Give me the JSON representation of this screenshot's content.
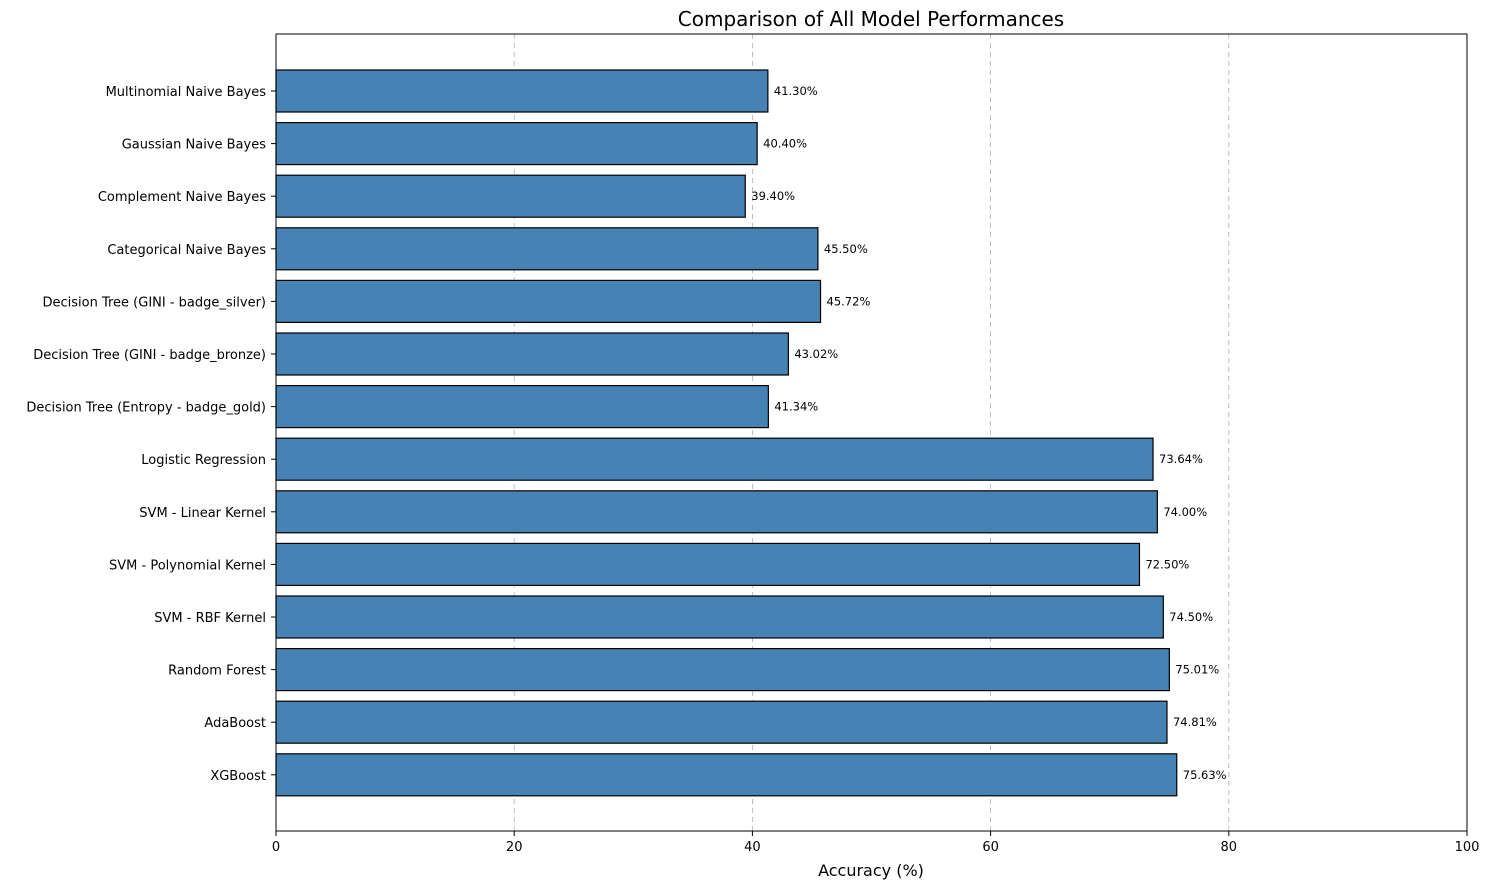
{
  "chart_data": {
    "type": "bar",
    "orientation": "horizontal",
    "title": "Comparison of All Model Performances",
    "xlabel": "Accuracy (%)",
    "ylabel": "",
    "xlim": [
      0,
      100
    ],
    "xticks": [
      0,
      20,
      40,
      60,
      80,
      100
    ],
    "grid": "x-axis dashed",
    "bar_color": "#4682b4",
    "edge_color": "#000000",
    "categories": [
      "Multinomial Naive Bayes",
      "Gaussian Naive Bayes",
      "Complement Naive Bayes",
      "Categorical Naive Bayes",
      "Decision Tree (GINI - badge_silver)",
      "Decision Tree (GINI - badge_bronze)",
      "Decision Tree (Entropy - badge_gold)",
      "Logistic Regression",
      "SVM - Linear Kernel",
      "SVM - Polynomial Kernel",
      "SVM - RBF Kernel",
      "Random Forest",
      "AdaBoost",
      "XGBoost"
    ],
    "values": [
      41.3,
      40.4,
      39.4,
      45.5,
      45.72,
      43.02,
      41.34,
      73.64,
      74.0,
      72.5,
      74.5,
      75.01,
      74.81,
      75.63
    ],
    "data_labels": [
      "41.30%",
      "40.40%",
      "39.40%",
      "45.50%",
      "45.72%",
      "43.02%",
      "41.34%",
      "73.64%",
      "74.00%",
      "72.50%",
      "74.50%",
      "75.01%",
      "74.81%",
      "75.63%"
    ]
  }
}
